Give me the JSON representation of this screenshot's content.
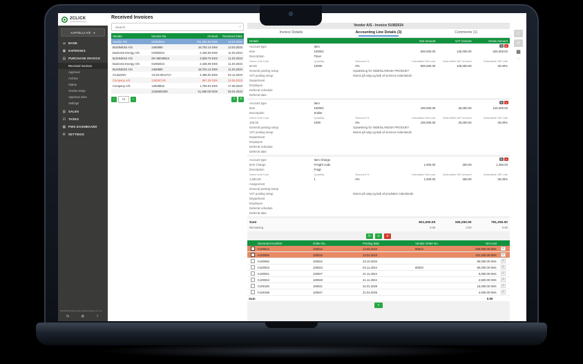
{
  "icons": {
    "search": "⌕",
    "dropdown": "▾",
    "copy": "⊞",
    "qr": "▦",
    "ghost": "▫",
    "envelope": "✉",
    "prev": "‹",
    "next": "›"
  },
  "colors": {
    "green_header": "#12923e",
    "green_button": "#27a844",
    "selected_row_blue": "#7fa6d4",
    "highlight_orange": "#e88a64",
    "delete_red": "#d2392e",
    "alert_text": "#e4553e",
    "tab_underline_blue": "#5b9bd5"
  },
  "sidebar": {
    "logo_text": "2CLICK",
    "company_selector": "KARTELLA A/S",
    "items": [
      {
        "key": "bank",
        "label": "BANK",
        "icon": "⌂"
      },
      {
        "key": "expenses",
        "label": "EXPENSES",
        "icon": "▣"
      },
      {
        "key": "purchase-invoice",
        "label": "PURCHASE INVOICE",
        "icon": "▤",
        "children": [
          {
            "label": "Received Invoices",
            "active": true
          },
          {
            "label": "Approval"
          },
          {
            "label": "Archive"
          },
          {
            "label": "Status"
          },
          {
            "label": "Vendor setup"
          },
          {
            "label": "Approval rules"
          },
          {
            "label": "Settings"
          }
        ]
      },
      {
        "key": "sales",
        "label": "SALES",
        "icon": "▥"
      },
      {
        "key": "tasks",
        "label": "TASKS",
        "icon": "☑"
      },
      {
        "key": "pws-dashboard",
        "label": "PWS DASHBOARD",
        "icon": "▦"
      },
      {
        "key": "settings",
        "label": "SETTINGS",
        "icon": "⚙"
      }
    ],
    "footer_email": "4840941113@kartella.2clickworldsign.com",
    "footer_icons": [
      {
        "key": "logout",
        "glyph": "⇆"
      },
      {
        "key": "globe",
        "glyph": "◍"
      },
      {
        "key": "theme-moon",
        "glyph": "☾"
      }
    ]
  },
  "page_title": "Received Invoices",
  "invoice_list": {
    "search_placeholder": "Search",
    "columns": [
      "Vendor",
      "Invoice No.",
      "Amount",
      "Received Date"
    ],
    "rows": [
      {
        "vendor": "Vendor A/S",
        "no": "01082024",
        "amount": "751,250.00 DKK",
        "date": "13.03.2024",
        "state": "selected"
      },
      {
        "vendor": "BUSINESS A/S",
        "no": "2460890",
        "amount": "18,704.14 DKK",
        "date": "13.03.2024"
      },
      {
        "vendor": "Business Energy A/S",
        "no": "01082024",
        "amount": "2,436.09 DKK",
        "date": "11.03.2024"
      },
      {
        "vendor": "BUSINESS A/S",
        "no": "DK-55049814",
        "amount": "4,938.75 DKK",
        "date": "11.03.2024"
      },
      {
        "vendor": "Business Energy A/S",
        "no": "01082024",
        "amount": "2,436.09 DKK",
        "date": "11.03.2024"
      },
      {
        "vendor": "BUSINESS A/S",
        "no": "2460890",
        "amount": "18,704.14 DKK",
        "date": "11.03.2024"
      },
      {
        "vendor": "Cruise/NO",
        "no": "13-04-0012717",
        "amount": "4,496.00 DKK",
        "date": "04.12.2023"
      },
      {
        "vendor": "Company A/S",
        "no": "12800CVR",
        "amount": "897.26 DKK",
        "date": "13.06.2023",
        "state": "alert"
      },
      {
        "vendor": "Company A/S",
        "no": "13629552",
        "amount": "1,756.03 DKK",
        "date": "17.08.2023"
      },
      {
        "vendor": "",
        "no": "2155000406",
        "amount": "21,350.00 NOK",
        "date": "29.04.2023"
      }
    ],
    "pagination": {
      "page_size": "10"
    },
    "actions": [
      {
        "key": "export",
        "glyph": "↧"
      },
      {
        "key": "print",
        "glyph": "≡"
      }
    ]
  },
  "detail": {
    "title": "Vendor A/S - Invoice 01082024",
    "tabs": [
      {
        "label": "Invoice Details"
      },
      {
        "label": "Accounting Line Details (3)",
        "active": true
      },
      {
        "label": "Comments (1)"
      }
    ],
    "columns": {
      "details": "Details",
      "net": "Net Amount",
      "vat": "VAT Amount",
      "gross": "Gross Amount"
    },
    "section_actions": [
      {
        "key": "edit",
        "glyph": "✎"
      },
      {
        "key": "delete",
        "glyph": "×"
      }
    ],
    "sections": [
      {
        "rows": [
          {
            "c": [
              "Account type",
              "Item",
              "",
              "",
              "",
              ""
            ]
          },
          {
            "c": [
              "Item",
              "100001",
              "",
              "500,000.00",
              "125,000.00",
              "625,000.00"
            ]
          },
          {
            "c": [
              "Description",
              "Timer",
              "",
              "",
              "",
              ""
            ]
          },
          {
            "c": [
              "Direct Unit Cost",
              "Quantity",
              "Discount %",
              "Calculated Net cost",
              "Deductible VAT amount",
              "Deductible VAT rate"
            ],
            "sub": true
          },
          {
            "c": [
              "50.00",
              "10000",
              "0%",
              "500,000.00",
              "125,000.00",
              "25.00%"
            ]
          },
          {
            "label": "General posting setup",
            "center": "Opsætning for INDENLANDSK PRODUKT"
          },
          {
            "label": "VAT posting setup",
            "center": "Moms på salg og køb af services indenlands"
          },
          {
            "c": [
              "Department",
              "",
              "",
              "",
              "",
              ""
            ]
          },
          {
            "c": [
              "Employee",
              "",
              "",
              "",
              "",
              ""
            ]
          },
          {
            "c": [
              "Deferral schedule",
              "",
              "",
              "",
              "",
              ""
            ]
          },
          {
            "c": [
              "Deferral date",
              "",
              "",
              "",
              "",
              ""
            ]
          }
        ]
      },
      {
        "rows": [
          {
            "c": [
              "Account type",
              "Item",
              "",
              "",
              "",
              ""
            ]
          },
          {
            "c": [
              "Item",
              "100001",
              "",
              "100,000.00",
              "25,000.00",
              "125,000.00"
            ]
          },
          {
            "c": [
              "Description",
              "Sokler",
              "",
              "",
              "",
              ""
            ]
          },
          {
            "c": [
              "Direct Unit Cost",
              "Quantity",
              "Discount %",
              "Calculated Net cost",
              "Deductible VAT amount",
              "Deductible VAT rate"
            ],
            "sub": true
          },
          {
            "c": [
              "100.00",
              "1000",
              "0%",
              "100,000.00",
              "25,000.00",
              "25.00%"
            ]
          },
          {
            "label": "General posting setup",
            "center": "Opsætning for INDENLANDSK PRODUKT"
          },
          {
            "label": "VAT posting setup",
            "center": "Moms på salg og køb af services indenlands"
          },
          {
            "c": [
              "Department",
              "",
              "",
              "",
              "",
              ""
            ]
          },
          {
            "c": [
              "Employee",
              "",
              "",
              "",
              "",
              ""
            ]
          },
          {
            "c": [
              "Deferral schedule",
              "",
              "",
              "",
              "",
              ""
            ]
          },
          {
            "c": [
              "Deferral date",
              "",
              "",
              "",
              "",
              ""
            ]
          }
        ]
      },
      {
        "rows": [
          {
            "c": [
              "Account type",
              "Item Charge",
              "",
              "",
              "",
              ""
            ]
          },
          {
            "c": [
              "Item Charge",
              "Freight code",
              "",
              "1,000.00",
              "250.00",
              "1,250.00"
            ]
          },
          {
            "c": [
              "Description",
              "Fragt",
              "",
              "",
              "",
              ""
            ]
          },
          {
            "c": [
              "Direct Unit Cost",
              "Quantity",
              "Discount %",
              "Calculated Net cost",
              "Deductible VAT amount",
              "Deductible VAT rate"
            ],
            "sub": true
          },
          {
            "c": [
              "1,000.00",
              "1",
              "0%",
              "1,000.00",
              "250.00",
              "25.00%"
            ]
          },
          {
            "c": [
              "Assignment",
              "",
              "",
              "",
              "",
              ""
            ]
          },
          {
            "c": [
              "General posting setup",
              "",
              "",
              "",
              "",
              ""
            ]
          },
          {
            "label": "VAT posting setup",
            "center": "Moms på salg og køb af produkter indenlands"
          },
          {
            "c": [
              "Department",
              "",
              "",
              "",
              "",
              ""
            ]
          },
          {
            "c": [
              "Employee",
              "",
              "",
              "",
              "",
              ""
            ]
          },
          {
            "c": [
              "Deferral schedule",
              "",
              "",
              "",
              "",
              ""
            ]
          },
          {
            "c": [
              "Deferral date",
              "",
              "",
              "",
              "",
              ""
            ]
          }
        ]
      }
    ],
    "totals": {
      "sum_label": "Sum",
      "sum": [
        "601,000.00",
        "150,250.00",
        "751,250.00"
      ],
      "remaining_label": "Remaining",
      "remaining": [
        "0.00",
        "0.00",
        "0.00"
      ]
    },
    "line_actions": [
      {
        "key": "auto-match",
        "glyph": "↻",
        "color": "green"
      },
      {
        "key": "add-line",
        "glyph": "+",
        "color": "green"
      },
      {
        "key": "delete-line",
        "glyph": "×",
        "color": "red"
      }
    ],
    "orders": {
      "columns": [
        "Document number",
        "Order No.",
        "Posting date",
        "Vendor Order No.",
        "Net cost"
      ],
      "rows": [
        {
          "checked": true,
          "highlight": true,
          "doc": "K100013",
          "order": "100014",
          "date": "13.05.2024",
          "vendor_order": "80014",
          "net": "500,000.00 DKK"
        },
        {
          "checked": true,
          "highlight": true,
          "doc": "K100050",
          "order": "100015",
          "date": "14.04.2024",
          "vendor_order": "",
          "net": "101,400.00 DKK"
        },
        {
          "doc": "K100082",
          "order": "100022",
          "date": "23.10.2024",
          "vendor_order": "",
          "net": "80,000.00 DKK"
        },
        {
          "doc": "K100023",
          "order": "100023",
          "date": "04.11.2024",
          "vendor_order": "80020",
          "net": "80,000.00 DKK"
        },
        {
          "doc": "K100041",
          "order": "100027",
          "date": "21.11.2024",
          "vendor_order": "",
          "net": "5,000.00 DKK"
        },
        {
          "doc": "K100042",
          "order": "100028",
          "date": "21.11.2024",
          "vendor_order": "",
          "net": "2,500.00 DKK"
        },
        {
          "doc": "K100190",
          "order": "100041",
          "date": "31.01.2025",
          "vendor_order": "",
          "net": "16,000.00 DKK"
        },
        {
          "doc": "K100198",
          "order": "100047",
          "date": "21.04.2025",
          "vendor_order": "",
          "net": "4,000.00 DKK"
        }
      ],
      "sum_label": "Sum",
      "sum_value": "0.00",
      "add_glyph": "+"
    },
    "side_actions": [
      {
        "key": "approve",
        "glyph": "✓"
      },
      {
        "key": "reject",
        "glyph": "✕"
      }
    ]
  }
}
